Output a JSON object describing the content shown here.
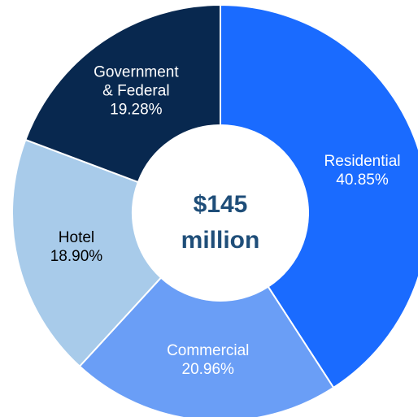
{
  "chart_data": {
    "type": "donut",
    "categories": [
      "Residential",
      "Commercial",
      "Hotel",
      "Government & Federal"
    ],
    "values": [
      40.85,
      20.96,
      18.9,
      19.28
    ],
    "value_labels": [
      "40.85%",
      "20.96%",
      "18.90%",
      "19.28%"
    ],
    "colors": [
      "#1a6bff",
      "#6a9ef6",
      "#a8cbea",
      "#08284f"
    ],
    "center_label": "$145 million"
  }
}
